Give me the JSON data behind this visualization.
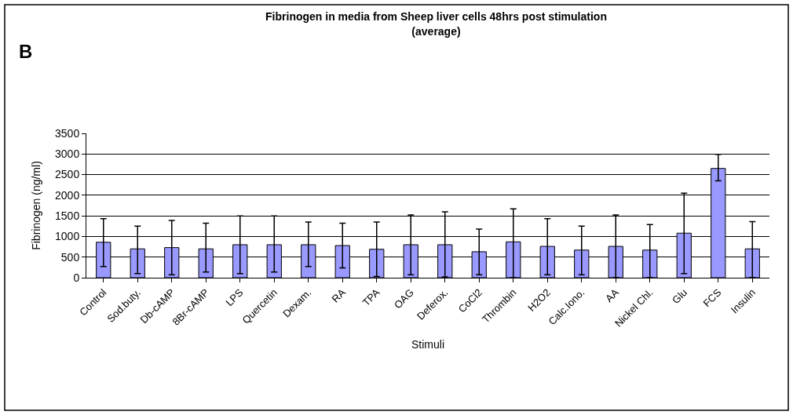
{
  "chart_data": {
    "type": "bar",
    "title": "Fibrinogen in media from Sheep liver cells 48hrs post stimulation\n(average)",
    "xlabel": "Stimuli",
    "ylabel": "Fibrinogen (ng/ml)",
    "annotations": [
      "B"
    ],
    "categories": [
      "Control",
      "Sod.buty.",
      "Db-cAMP",
      "8Br-cAMP",
      "LPS",
      "Quercetin",
      "Dexam.",
      "RA",
      "TPA",
      "OAG",
      "Deferox.",
      "CoCl2",
      "Thrombin",
      "H2O2",
      "Calc.Iono.",
      "AA",
      "Nickel Chl.",
      "Glu",
      "FCS",
      "Insulin"
    ],
    "values": [
      860,
      700,
      730,
      700,
      800,
      800,
      800,
      780,
      690,
      800,
      800,
      630,
      870,
      760,
      670,
      760,
      670,
      1080,
      2650,
      700
    ],
    "errors": [
      [
        270,
        1430
      ],
      [
        100,
        1250
      ],
      [
        70,
        1390
      ],
      [
        140,
        1320
      ],
      [
        100,
        1500
      ],
      [
        140,
        1500
      ],
      [
        270,
        1350
      ],
      [
        240,
        1320
      ],
      [
        30,
        1350
      ],
      [
        70,
        1520
      ],
      [
        20,
        1600
      ],
      [
        70,
        1180
      ],
      [
        0,
        1670
      ],
      [
        70,
        1430
      ],
      [
        70,
        1250
      ],
      [
        0,
        1520
      ],
      [
        0,
        1290
      ],
      [
        100,
        2050
      ],
      [
        2350,
        2990
      ],
      [
        0,
        1360
      ]
    ],
    "color": "#9999ff",
    "ylim": [
      0,
      3500
    ],
    "yticks": [
      0,
      500,
      1000,
      1500,
      2000,
      2500,
      3000,
      3500
    ],
    "grid": "y",
    "legend": false
  }
}
